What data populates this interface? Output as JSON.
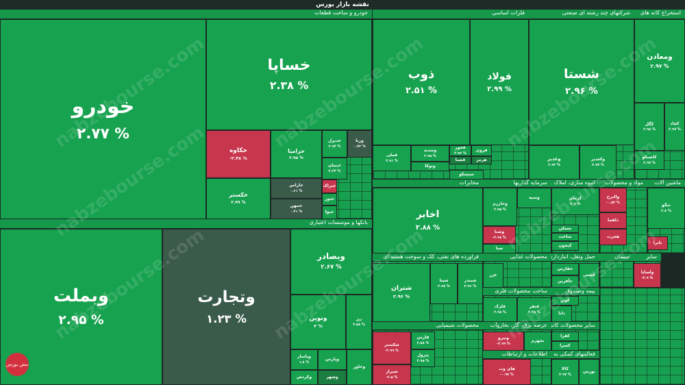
{
  "header": {
    "title": "نقشه بازار بورس"
  },
  "watermark": "nabzebourse.com",
  "logo": "نبض بورس",
  "sectors": [
    {
      "name": "خودرو و ساخت قطعات",
      "tiles": [
        {
          "symbol": "خودرو",
          "change": "۲.۷۷ %"
        },
        {
          "symbol": "خساپا",
          "change": "۲.۳۸ %"
        },
        {
          "symbol": "خکاوه",
          "change": "-۲.۴۸ %"
        },
        {
          "symbol": "خزامیا",
          "change": "۲.۹۵ %"
        },
        {
          "symbol": "خکستر",
          "change": "۲.۹۹ %"
        },
        {
          "symbol": "خاراس",
          "change": "۰.۶۱ %"
        },
        {
          "symbol": "خمهن",
          "change": "۰.۴۱ %"
        },
        {
          "symbol": "خدیزل",
          "change": "۲.۹۴ %"
        },
        {
          "symbol": "ورنا",
          "change": "۰.۷۳ %"
        },
        {
          "symbol": "خبنیان",
          "change": "۲.۲۴ %"
        },
        {
          "symbol": "ختراک"
        },
        {
          "symbol": "ختور"
        },
        {
          "symbol": "خنوا"
        }
      ]
    },
    {
      "name": "بانکها و موسسات اعتباری",
      "tiles": [
        {
          "symbol": "وبملت",
          "change": "۲.۹۵ %"
        },
        {
          "symbol": "وتجارت",
          "change": "۱.۲۳ %"
        },
        {
          "symbol": "وبصادر",
          "change": "۲.۶۷ %"
        },
        {
          "symbol": "ونوین",
          "change": "۳ %"
        },
        {
          "symbol": "دی",
          "change": "۲.۵۸ %"
        },
        {
          "symbol": "وپاسار",
          "change": "۱.۸ %"
        },
        {
          "symbol": "وپارس"
        },
        {
          "symbol": "وشهر"
        },
        {
          "symbol": "وخاور"
        },
        {
          "symbol": "وکردش"
        }
      ]
    },
    {
      "name": "فلزات اساسی",
      "tiles": [
        {
          "symbol": "ذوب",
          "change": "۲.۵۱ %"
        },
        {
          "symbol": "فولاد",
          "change": "۲.۹۹ %"
        },
        {
          "symbol": "فملی",
          "change": "۲.۹۱ %"
        },
        {
          "symbol": "وسدید",
          "change": "۲.۹۵ %"
        },
        {
          "symbol": "فخوز",
          "change": "۲.۹۳ %"
        },
        {
          "symbol": "فروی"
        },
        {
          "symbol": "فصبا"
        },
        {
          "symbol": "هرمز"
        },
        {
          "symbol": "ونوکا"
        },
        {
          "symbol": "سیسکو"
        }
      ]
    },
    {
      "name": "شرکتهای چند رشته ای صنعتی",
      "tiles": [
        {
          "symbol": "شستا",
          "change": "۲.۹۶ %"
        },
        {
          "symbol": "وغدیر",
          "change": "۲.۹۳ %"
        },
        {
          "symbol": "وکغدیر",
          "change": "۲.۹۷ %"
        }
      ]
    },
    {
      "name": "استخراج کانه های",
      "tiles": [
        {
          "symbol": "ومعادن",
          "change": "۲.۹۷ %"
        },
        {
          "symbol": "کگل",
          "change": "۲.۹۸ %"
        },
        {
          "symbol": "کچاد",
          "change": "۲.۹۷ %"
        },
        {
          "symbol": "کاصیکو",
          "change": "۲.۹۷ %"
        }
      ]
    },
    {
      "name": "مخابرات",
      "tiles": [
        {
          "symbol": "اخابر",
          "change": "۲.۸۸ %"
        }
      ]
    },
    {
      "name": "فراورده های نفتی، کک و سوخت هسته ای",
      "tiles": [
        {
          "symbol": "شتران",
          "change": "۲.۹۶ %"
        },
        {
          "symbol": "شپنا",
          "change": "۲.۹۸ %"
        },
        {
          "symbol": "شبندر",
          "change": "۲.۹۶ %"
        }
      ]
    },
    {
      "name": "محصولات شیمیایی",
      "tiles": [
        {
          "symbol": "شکستر",
          "change": "-۲.۹۹ %"
        },
        {
          "symbol": "شیراز",
          "change": "-۲.۵ %"
        },
        {
          "symbol": "فارس",
          "change": "۲.۸۸ %"
        },
        {
          "symbol": "پترول",
          "change": "۲.۹۵ %"
        }
      ]
    },
    {
      "name": "سرمایه گذاریها",
      "tiles": [
        {
          "symbol": "وخارزم",
          "change": "۲.۹۵ %"
        },
        {
          "symbol": "وسپه"
        },
        {
          "symbol": "وصنا",
          "change": "-۲.۹۸ %"
        },
        {
          "symbol": "صبا"
        }
      ]
    },
    {
      "name": "انبوه سازی، املاک و",
      "tiles": [
        {
          "symbol": "کرمان",
          "change": "۲.۹ %"
        },
        {
          "symbol": "مسکن"
        },
        {
          "symbol": "ساخت"
        },
        {
          "symbol": "کیجون"
        }
      ]
    },
    {
      "name": "مواد و محصولات",
      "tiles": [
        {
          "symbol": "والبرح",
          "change": "-۰.۵۲ %"
        },
        {
          "symbol": "دلقما"
        },
        {
          "symbol": "هجرت"
        }
      ]
    },
    {
      "name": "ماشین آلات",
      "tiles": [
        {
          "symbol": "تیکو",
          "change": "۲.۸ %"
        },
        {
          "symbol": "تایرا"
        }
      ]
    },
    {
      "name": "محصولات غذایی",
      "tiles": [
        {
          "symbol": "غزر"
        }
      ]
    },
    {
      "name": "حمل ونقل، انبارداری",
      "tiles": [
        {
          "symbol": "حفارس"
        },
        {
          "symbol": "حآفرین"
        },
        {
          "symbol": "کشتی"
        }
      ]
    },
    {
      "name": "سیمان",
      "tiles": []
    },
    {
      "name": "سایر",
      "tiles": [
        {
          "symbol": "ولساپا",
          "change": "-۲.۹ %"
        }
      ]
    },
    {
      "name": "ساخت محصولات فلزی",
      "tiles": [
        {
          "symbol": "فلزک",
          "change": "۲.۹۸ %"
        },
        {
          "symbol": "فنفر",
          "change": "۲.۴۵ %"
        }
      ]
    },
    {
      "name": "بیمه وصندوق",
      "tiles": [
        {
          "symbol": "کوثر"
        },
        {
          "symbol": "دانا"
        }
      ]
    },
    {
      "name": "عرضه برق، گاز، بخاروآب",
      "tiles": [
        {
          "symbol": "ونیرو",
          "change": "-۲.۹۹ %"
        },
        {
          "symbol": "بجهرم"
        }
      ]
    },
    {
      "name": "سایر محصولات کانی",
      "tiles": [
        {
          "symbol": "کفرا"
        },
        {
          "symbol": "کسرا"
        }
      ]
    },
    {
      "name": "اطلاعات و ارتباطات",
      "tiles": [
        {
          "symbol": "های وب",
          "change": "-۰.۹۷ %"
        }
      ]
    },
    {
      "name": "فعالیتهای کمکی به",
      "tiles": [
        {
          "symbol": "کالا",
          "change": "۲.۹۷ %"
        },
        {
          "symbol": "بورس"
        }
      ]
    }
  ]
}
